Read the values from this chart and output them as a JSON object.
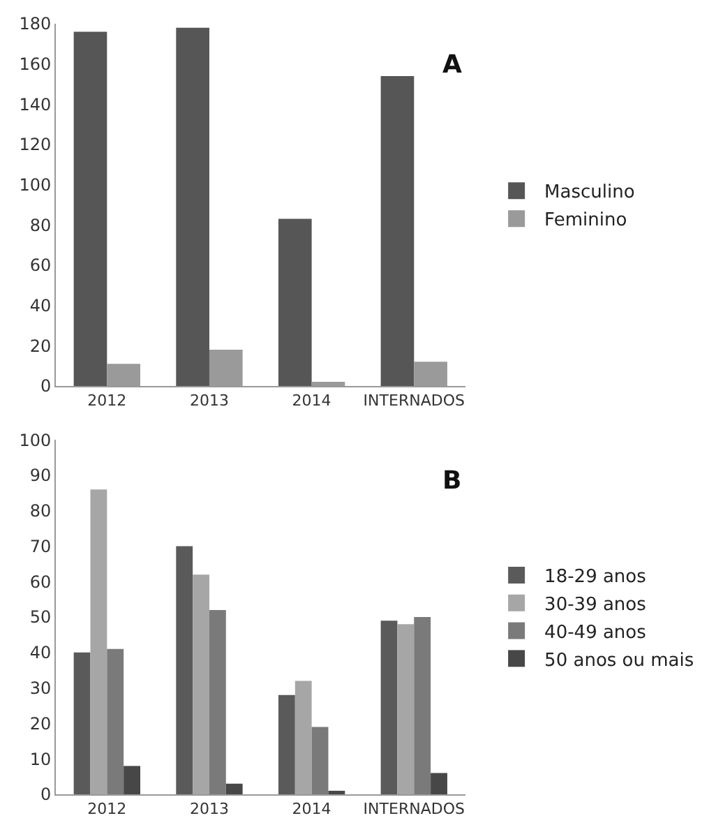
{
  "chart_data": [
    {
      "type": "bar",
      "title": "A",
      "categories": [
        "2012",
        "2013",
        "2014",
        "INTERNADOS"
      ],
      "ylim": [
        0,
        180
      ],
      "yticks": [
        0,
        20,
        40,
        60,
        80,
        100,
        120,
        140,
        160,
        180
      ],
      "grid": false,
      "legend": "right",
      "series": [
        {
          "name": "Masculino",
          "color": "#565656",
          "values": [
            176,
            178,
            83,
            154
          ]
        },
        {
          "name": "Feminino",
          "color": "#9a9a9a",
          "values": [
            11,
            18,
            2,
            12
          ]
        }
      ]
    },
    {
      "type": "bar",
      "title": "B",
      "categories": [
        "2012",
        "2013",
        "2014",
        "INTERNADOS"
      ],
      "ylim": [
        0,
        100
      ],
      "yticks": [
        0,
        10,
        20,
        30,
        40,
        50,
        60,
        70,
        80,
        90,
        100
      ],
      "grid": false,
      "legend": "right",
      "series": [
        {
          "name": "18-29 anos",
          "color": "#5a5a5a",
          "values": [
            40,
            70,
            28,
            49
          ]
        },
        {
          "name": "30-39 anos",
          "color": "#a6a6a6",
          "values": [
            86,
            62,
            32,
            48
          ]
        },
        {
          "name": "40-49 anos",
          "color": "#7a7a7a",
          "values": [
            41,
            52,
            19,
            50
          ]
        },
        {
          "name": "50 anos ou mais",
          "color": "#474747",
          "values": [
            8,
            3,
            1,
            6
          ]
        }
      ]
    }
  ]
}
